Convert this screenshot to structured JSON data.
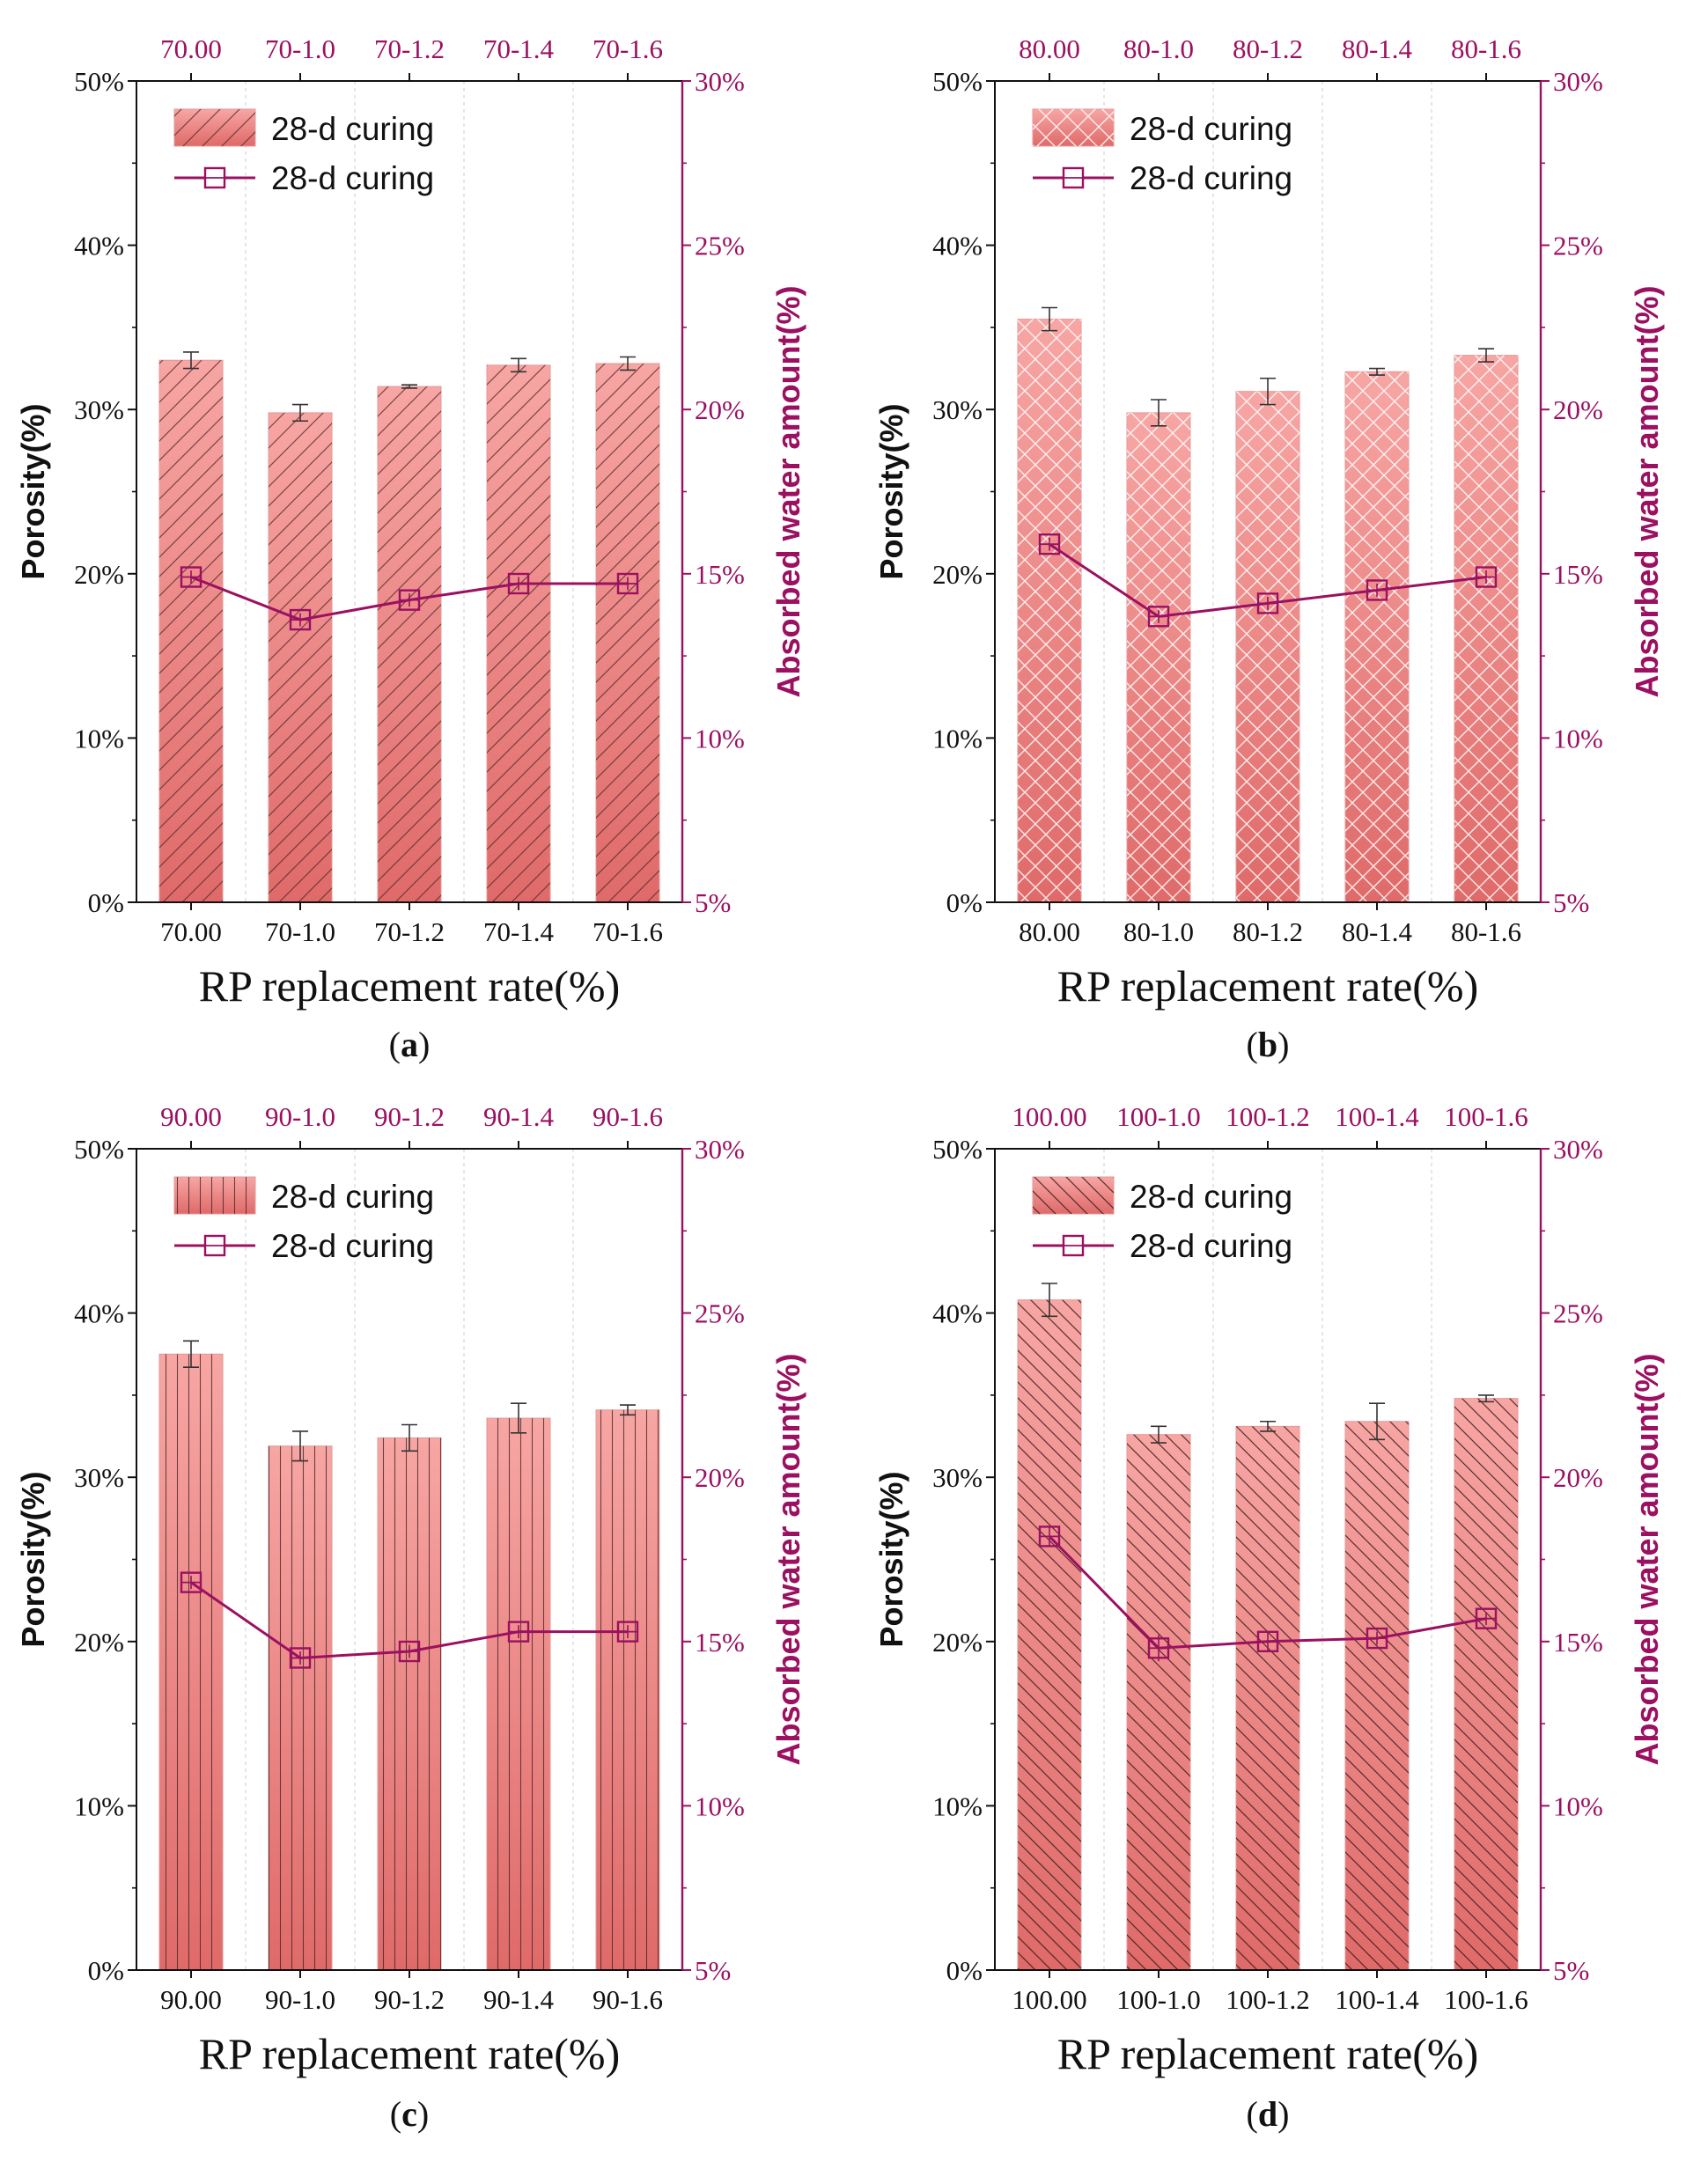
{
  "colors": {
    "bar_top": "#f7a6a4",
    "bar_bottom": "#df6a69",
    "line": "#9b1060",
    "axis": "#111111",
    "grid": "#d6d6d6"
  },
  "chart_data": [
    {
      "type": "bar+line",
      "panel_label": "a",
      "categories": [
        "70.00",
        "70-1.0",
        "70-1.2",
        "70-1.4",
        "70-1.6"
      ],
      "top_categories": [
        "70.00",
        "70-1.0",
        "70-1.2",
        "70-1.4",
        "70-1.6"
      ],
      "xlabel": "RP replacement rate(%)",
      "ylabel": "Porosity(%)",
      "y2label": "Absorbed water amount(%)",
      "ylim": [
        0,
        50
      ],
      "y2lim": [
        5,
        30
      ],
      "yticks": [
        "0%",
        "10%",
        "20%",
        "30%",
        "40%",
        "50%"
      ],
      "y2ticks": [
        "5%",
        "10%",
        "15%",
        "20%",
        "25%",
        "30%"
      ],
      "hatch": "forward",
      "bars": {
        "name": "28-d curing",
        "values": [
          33.0,
          29.8,
          31.4,
          32.7,
          32.8
        ],
        "errors": [
          0.5,
          0.5,
          0.1,
          0.4,
          0.4
        ]
      },
      "line": {
        "name": "28-d curing",
        "values": [
          14.9,
          13.6,
          14.2,
          14.7,
          14.7
        ],
        "errors": [
          0.2,
          0.2,
          0.2,
          0.2,
          0.2
        ]
      }
    },
    {
      "type": "bar+line",
      "panel_label": "b",
      "categories": [
        "80.00",
        "80-1.0",
        "80-1.2",
        "80-1.4",
        "80-1.6"
      ],
      "top_categories": [
        "80.00",
        "80-1.0",
        "80-1.2",
        "80-1.4",
        "80-1.6"
      ],
      "xlabel": "RP replacement rate(%)",
      "ylabel": "Porosity(%)",
      "y2label": "Absorbed water amount(%)",
      "ylim": [
        0,
        50
      ],
      "y2lim": [
        5,
        30
      ],
      "yticks": [
        "0%",
        "10%",
        "20%",
        "30%",
        "40%",
        "50%"
      ],
      "y2ticks": [
        "5%",
        "10%",
        "15%",
        "20%",
        "25%",
        "30%"
      ],
      "hatch": "cross",
      "bars": {
        "name": "28-d curing",
        "values": [
          35.5,
          29.8,
          31.1,
          32.3,
          33.3
        ],
        "errors": [
          0.7,
          0.8,
          0.8,
          0.2,
          0.4
        ]
      },
      "line": {
        "name": "28-d curing",
        "values": [
          15.9,
          13.7,
          14.1,
          14.5,
          14.9
        ],
        "errors": [
          0.2,
          0.2,
          0.2,
          0.2,
          0.2
        ]
      }
    },
    {
      "type": "bar+line",
      "panel_label": "c",
      "categories": [
        "90.00",
        "90-1.0",
        "90-1.2",
        "90-1.4",
        "90-1.6"
      ],
      "top_categories": [
        "90.00",
        "90-1.0",
        "90-1.2",
        "90-1.4",
        "90-1.6"
      ],
      "xlabel": "RP replacement rate(%)",
      "ylabel": "Porosity(%)",
      "y2label": "Absorbed water amount(%)",
      "ylim": [
        0,
        50
      ],
      "y2lim": [
        5,
        30
      ],
      "yticks": [
        "0%",
        "10%",
        "20%",
        "30%",
        "40%",
        "50%"
      ],
      "y2ticks": [
        "5%",
        "10%",
        "15%",
        "20%",
        "25%",
        "30%"
      ],
      "hatch": "vertical",
      "bars": {
        "name": "28-d curing",
        "values": [
          37.5,
          31.9,
          32.4,
          33.6,
          34.1
        ],
        "errors": [
          0.8,
          0.9,
          0.8,
          0.9,
          0.3
        ]
      },
      "line": {
        "name": "28-d curing",
        "values": [
          16.8,
          14.5,
          14.7,
          15.3,
          15.3
        ],
        "errors": [
          0.2,
          0.2,
          0.2,
          0.2,
          0.2
        ]
      }
    },
    {
      "type": "bar+line",
      "panel_label": "d",
      "categories": [
        "100.00",
        "100-1.0",
        "100-1.2",
        "100-1.4",
        "100-1.6"
      ],
      "top_categories": [
        "100.00",
        "100-1.0",
        "100-1.2",
        "100-1.4",
        "100-1.6"
      ],
      "xlabel": "RP replacement rate(%)",
      "ylabel": "Porosity(%)",
      "y2label": "Absorbed water amount(%)",
      "ylim": [
        0,
        50
      ],
      "y2lim": [
        5,
        30
      ],
      "yticks": [
        "0%",
        "10%",
        "20%",
        "30%",
        "40%",
        "50%"
      ],
      "y2ticks": [
        "5%",
        "10%",
        "15%",
        "20%",
        "25%",
        "30%"
      ],
      "hatch": "backward",
      "bars": {
        "name": "28-d curing",
        "values": [
          40.8,
          32.6,
          33.1,
          33.4,
          34.8
        ],
        "errors": [
          1.0,
          0.5,
          0.3,
          1.1,
          0.2
        ]
      },
      "line": {
        "name": "28-d curing",
        "values": [
          18.2,
          14.8,
          15.0,
          15.1,
          15.7
        ],
        "errors": [
          0.3,
          0.4,
          0.3,
          0.2,
          0.2
        ]
      }
    }
  ]
}
